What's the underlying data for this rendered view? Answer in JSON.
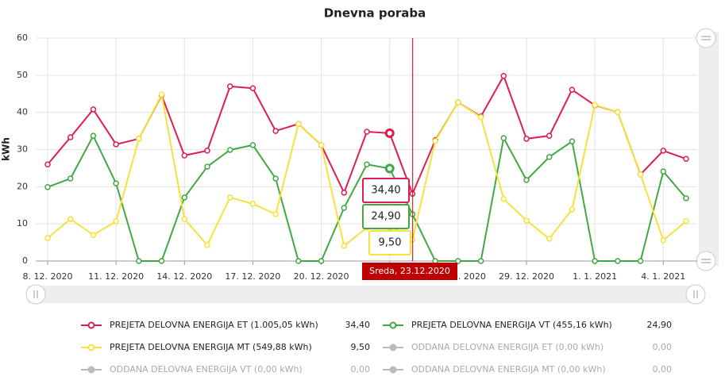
{
  "chart_data": {
    "type": "line",
    "title": "Dnevna poraba",
    "y_label": "kWh",
    "categories": [
      "8. 12. 2020",
      null,
      null,
      "11. 12. 2020",
      null,
      null,
      "14. 12. 2020",
      null,
      null,
      "17. 12. 2020",
      null,
      null,
      "20. 12. 2020",
      null,
      null,
      "23. 12. 2020",
      null,
      null,
      "26. 12. 2020",
      null,
      null,
      "29. 12. 2020",
      null,
      null,
      "1. 1. 2021",
      null,
      null,
      "4. 1. 2021",
      null
    ],
    "ylim": [
      0,
      60
    ],
    "yticks": [
      0,
      10,
      20,
      30,
      40,
      50,
      60
    ],
    "grid": true,
    "series": [
      {
        "name": "PREJETA DELOVNA ENERGIJA ET (1.005,05 kWh)",
        "color": "#dc1e50",
        "current": {
          "value": 34.4,
          "label": "34,40"
        },
        "values": [
          26.0,
          33.3,
          40.8,
          31.4,
          32.9,
          44.6,
          28.4,
          29.7,
          47.0,
          46.5,
          35.0,
          36.9,
          31.2,
          18.4,
          34.8,
          34.4,
          18.1,
          32.5,
          42.7,
          38.9,
          49.8,
          32.9,
          33.7,
          46.1,
          41.9,
          40.1,
          23.3,
          29.7,
          27.5
        ]
      },
      {
        "name": "PREJETA DELOVNA ENERGIJA VT (455,16 kWh)",
        "color": "#43a843",
        "current": {
          "value": 24.9,
          "label": "24,90"
        },
        "values": [
          19.9,
          22.2,
          33.7,
          20.9,
          0,
          0,
          17.1,
          25.4,
          29.9,
          31.2,
          22.2,
          0,
          0,
          14.3,
          26.0,
          24.9,
          12.6,
          0,
          0,
          0,
          33.1,
          21.8,
          28.0,
          32.2,
          0,
          0,
          0,
          24.1,
          16.9
        ]
      },
      {
        "name": "PREJETA DELOVNA ENERGIJA MT (549,88 kWh)",
        "color": "#f7e23a",
        "current": {
          "value": 9.5,
          "label": "9,50"
        },
        "values": [
          6.2,
          11.3,
          7.0,
          10.7,
          32.9,
          44.8,
          11.3,
          4.3,
          17.1,
          15.4,
          12.6,
          36.9,
          31.2,
          4.1,
          9.0,
          9.5,
          5.8,
          32.3,
          42.7,
          38.7,
          16.7,
          10.9,
          6.0,
          13.9,
          42.0,
          40.1,
          23.3,
          5.6,
          10.7
        ]
      },
      {
        "name": "ODDANA DELOVNA ENERGIJA ET (0,00 kWh)",
        "color": "#bbbbbb",
        "current": {
          "value": 0,
          "label": "0,00"
        }
      },
      {
        "name": "ODDANA DELOVNA ENERGIJA VT (0,00 kWh)",
        "color": "#bbbbbb",
        "current": {
          "value": 0,
          "label": "0,00"
        }
      },
      {
        "name": "ODDANA DELOVNA ENERGIJA MT (0,00 kWh)",
        "color": "#bbbbbb",
        "current": {
          "value": 0,
          "label": "0,00"
        }
      }
    ],
    "tooltip": {
      "label": "Sreda, 23.12.2020",
      "index": 15
    }
  }
}
